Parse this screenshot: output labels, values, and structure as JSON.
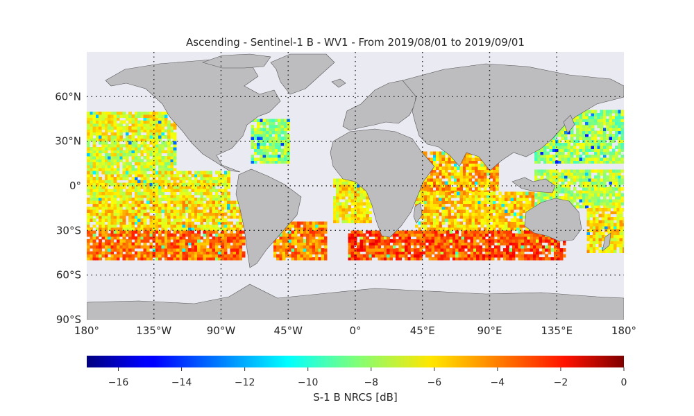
{
  "title": "Ascending - Sentinel-1 B - WV1 - From 2019/08/01 to 2019/09/01",
  "map": {
    "projection": "equirectangular",
    "ocean_color": "#eaeaf2",
    "land_color": "#bdbdc0",
    "coastline_color": "#555555",
    "lon_range": [
      -180,
      180
    ],
    "lat_range": [
      -90,
      90
    ],
    "lat_gridlines": [
      60,
      30,
      0,
      -30,
      -60
    ],
    "lon_gridlines": [
      -135,
      -90,
      -45,
      0,
      45,
      90,
      135
    ],
    "lat_tick_labels": [
      {
        "value": 60,
        "label": "60°N"
      },
      {
        "value": 30,
        "label": "30°N"
      },
      {
        "value": 0,
        "label": "0°"
      },
      {
        "value": -30,
        "label": "30°S"
      },
      {
        "value": -60,
        "label": "60°S"
      },
      {
        "value": -90,
        "label": "90°S"
      }
    ],
    "lon_tick_labels": [
      {
        "value": -180,
        "label": "180°"
      },
      {
        "value": -135,
        "label": "135°W"
      },
      {
        "value": -90,
        "label": "90°W"
      },
      {
        "value": -45,
        "label": "45°W"
      },
      {
        "value": 0,
        "label": "0°"
      },
      {
        "value": 45,
        "label": "45°E"
      },
      {
        "value": 90,
        "label": "90°E"
      },
      {
        "value": 135,
        "label": "135°E"
      },
      {
        "value": 180,
        "label": "180°"
      }
    ]
  },
  "colorbar": {
    "colormap": "jet",
    "range": [
      -17,
      0
    ],
    "ticks": [
      -16,
      -14,
      -12,
      -10,
      -8,
      -6,
      -4,
      -2,
      0
    ],
    "tick_labels": [
      "−16",
      "−14",
      "−12",
      "−10",
      "−8",
      "−6",
      "−4",
      "−2",
      "0"
    ],
    "label": "S-1 B NRCS [dB]"
  },
  "chart_data": {
    "type": "heatmap",
    "variable": "S-1 B NRCS [dB]",
    "lat_extent": [
      -50,
      50
    ],
    "regions": [
      {
        "lon": [
          -180,
          -120
        ],
        "lat": [
          30,
          50
        ],
        "value": -6.5
      },
      {
        "lon": [
          -180,
          -120
        ],
        "lat": [
          10,
          30
        ],
        "value": -7.0
      },
      {
        "lon": [
          -180,
          -85
        ],
        "lat": [
          -10,
          10
        ],
        "value": -6.5
      },
      {
        "lon": [
          -180,
          -75
        ],
        "lat": [
          -30,
          -10
        ],
        "value": -5.8
      },
      {
        "lon": [
          -180,
          -75
        ],
        "lat": [
          -50,
          -30
        ],
        "value": -4.0
      },
      {
        "lon": [
          -70,
          -45
        ],
        "lat": [
          15,
          45
        ],
        "value": -8.0
      },
      {
        "lon": [
          -55,
          -20
        ],
        "lat": [
          -50,
          -25
        ],
        "value": -4.3
      },
      {
        "lon": [
          -15,
          10
        ],
        "lat": [
          -25,
          5
        ],
        "value": -6.2
      },
      {
        "lon": [
          -5,
          20
        ],
        "lat": [
          -50,
          -30
        ],
        "value": -3.2
      },
      {
        "lon": [
          40,
          95
        ],
        "lat": [
          -5,
          22
        ],
        "value": -5.0
      },
      {
        "lon": [
          40,
          120
        ],
        "lat": [
          -30,
          -5
        ],
        "value": -5.5
      },
      {
        "lon": [
          15,
          140
        ],
        "lat": [
          -50,
          -30
        ],
        "value": -3.4
      },
      {
        "lon": [
          120,
          180
        ],
        "lat": [
          15,
          50
        ],
        "value": -8.0
      },
      {
        "lon": [
          120,
          180
        ],
        "lat": [
          -15,
          10
        ],
        "value": -7.5
      },
      {
        "lon": [
          155,
          180
        ],
        "lat": [
          -45,
          -15
        ],
        "value": -6.0
      }
    ]
  }
}
